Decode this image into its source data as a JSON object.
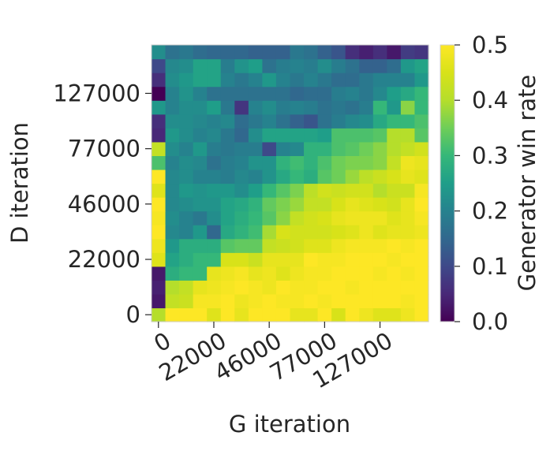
{
  "chart_data": {
    "type": "heatmap",
    "xlabel": "G iteration",
    "ylabel": "D iteration",
    "colorbar_label": "Generator win rate",
    "colormap": "viridis",
    "color_range": [
      0.0,
      0.5
    ],
    "colorbar_ticks": [
      "0.0",
      "0.1",
      "0.2",
      "0.3",
      "0.4",
      "0.5"
    ],
    "x_tick_labels": [
      "0",
      "22000",
      "46000",
      "77000",
      "127000"
    ],
    "y_tick_labels": [
      "0",
      "22000",
      "46000",
      "77000",
      "127000"
    ],
    "n_cols": 20,
    "n_rows": 20,
    "values_bottom_to_top": [
      [
        0.4,
        0.5,
        0.5,
        0.5,
        0.46,
        0.5,
        0.47,
        0.5,
        0.5,
        0.5,
        0.47,
        0.47,
        0.5,
        0.45,
        0.5,
        0.48,
        0.46,
        0.46,
        0.48,
        0.5
      ],
      [
        0.03,
        0.42,
        0.43,
        0.49,
        0.49,
        0.5,
        0.48,
        0.49,
        0.5,
        0.49,
        0.49,
        0.5,
        0.49,
        0.5,
        0.5,
        0.5,
        0.5,
        0.5,
        0.49,
        0.5
      ],
      [
        0.04,
        0.4,
        0.42,
        0.47,
        0.48,
        0.49,
        0.5,
        0.49,
        0.48,
        0.5,
        0.49,
        0.49,
        0.5,
        0.5,
        0.49,
        0.5,
        0.5,
        0.5,
        0.5,
        0.5
      ],
      [
        0.03,
        0.28,
        0.3,
        0.3,
        0.47,
        0.48,
        0.49,
        0.47,
        0.48,
        0.46,
        0.48,
        0.49,
        0.49,
        0.5,
        0.5,
        0.5,
        0.49,
        0.5,
        0.49,
        0.5
      ],
      [
        0.46,
        0.26,
        0.28,
        0.3,
        0.3,
        0.45,
        0.45,
        0.43,
        0.47,
        0.47,
        0.47,
        0.5,
        0.49,
        0.49,
        0.5,
        0.5,
        0.5,
        0.49,
        0.5,
        0.5
      ],
      [
        0.48,
        0.24,
        0.28,
        0.28,
        0.28,
        0.33,
        0.34,
        0.34,
        0.42,
        0.43,
        0.44,
        0.46,
        0.46,
        0.48,
        0.49,
        0.49,
        0.49,
        0.5,
        0.49,
        0.5
      ],
      [
        0.5,
        0.21,
        0.2,
        0.24,
        0.15,
        0.27,
        0.29,
        0.31,
        0.39,
        0.45,
        0.44,
        0.44,
        0.44,
        0.45,
        0.46,
        0.48,
        0.46,
        0.47,
        0.47,
        0.48
      ],
      [
        0.49,
        0.22,
        0.2,
        0.18,
        0.22,
        0.26,
        0.28,
        0.3,
        0.33,
        0.37,
        0.42,
        0.44,
        0.45,
        0.47,
        0.48,
        0.48,
        0.48,
        0.46,
        0.47,
        0.49
      ],
      [
        0.5,
        0.21,
        0.22,
        0.23,
        0.23,
        0.26,
        0.27,
        0.29,
        0.34,
        0.36,
        0.38,
        0.42,
        0.42,
        0.45,
        0.47,
        0.46,
        0.45,
        0.44,
        0.47,
        0.5
      ],
      [
        0.46,
        0.21,
        0.24,
        0.23,
        0.24,
        0.24,
        0.22,
        0.25,
        0.3,
        0.33,
        0.36,
        0.41,
        0.44,
        0.43,
        0.44,
        0.44,
        0.4,
        0.43,
        0.43,
        0.49
      ],
      [
        0.5,
        0.21,
        0.22,
        0.2,
        0.2,
        0.19,
        0.21,
        0.2,
        0.23,
        0.27,
        0.3,
        0.28,
        0.33,
        0.35,
        0.38,
        0.41,
        0.43,
        0.45,
        0.47,
        0.46
      ],
      [
        0.32,
        0.2,
        0.22,
        0.21,
        0.17,
        0.19,
        0.2,
        0.23,
        0.23,
        0.29,
        0.31,
        0.29,
        0.32,
        0.35,
        0.36,
        0.36,
        0.37,
        0.42,
        0.48,
        0.47
      ],
      [
        0.42,
        0.22,
        0.2,
        0.24,
        0.19,
        0.18,
        0.19,
        0.19,
        0.1,
        0.2,
        0.21,
        0.29,
        0.29,
        0.32,
        0.33,
        0.35,
        0.37,
        0.4,
        0.42,
        0.44
      ],
      [
        0.05,
        0.24,
        0.22,
        0.2,
        0.21,
        0.18,
        0.15,
        0.22,
        0.26,
        0.26,
        0.26,
        0.26,
        0.25,
        0.32,
        0.32,
        0.32,
        0.33,
        0.4,
        0.4,
        0.33
      ],
      [
        0.06,
        0.22,
        0.22,
        0.21,
        0.2,
        0.21,
        0.16,
        0.18,
        0.2,
        0.17,
        0.14,
        0.12,
        0.17,
        0.19,
        0.21,
        0.22,
        0.27,
        0.3,
        0.3,
        0.32
      ],
      [
        0.24,
        0.2,
        0.22,
        0.22,
        0.25,
        0.18,
        0.07,
        0.2,
        0.22,
        0.19,
        0.2,
        0.19,
        0.17,
        0.18,
        0.17,
        0.19,
        0.3,
        0.24,
        0.37,
        0.3
      ],
      [
        0.0,
        0.2,
        0.23,
        0.2,
        0.17,
        0.17,
        0.17,
        0.17,
        0.17,
        0.17,
        0.15,
        0.16,
        0.16,
        0.19,
        0.2,
        0.18,
        0.21,
        0.25,
        0.27,
        0.3
      ],
      [
        0.06,
        0.22,
        0.24,
        0.26,
        0.26,
        0.2,
        0.18,
        0.2,
        0.24,
        0.2,
        0.18,
        0.2,
        0.18,
        0.16,
        0.16,
        0.18,
        0.2,
        0.2,
        0.2,
        0.24
      ],
      [
        0.1,
        0.21,
        0.22,
        0.26,
        0.26,
        0.19,
        0.23,
        0.25,
        0.17,
        0.19,
        0.2,
        0.19,
        0.22,
        0.19,
        0.17,
        0.14,
        0.14,
        0.16,
        0.24,
        0.26
      ],
      [
        0.22,
        0.17,
        0.18,
        0.16,
        0.15,
        0.15,
        0.15,
        0.14,
        0.14,
        0.14,
        0.18,
        0.17,
        0.14,
        0.12,
        0.06,
        0.04,
        0.06,
        0.03,
        0.08,
        0.07
      ]
    ]
  }
}
